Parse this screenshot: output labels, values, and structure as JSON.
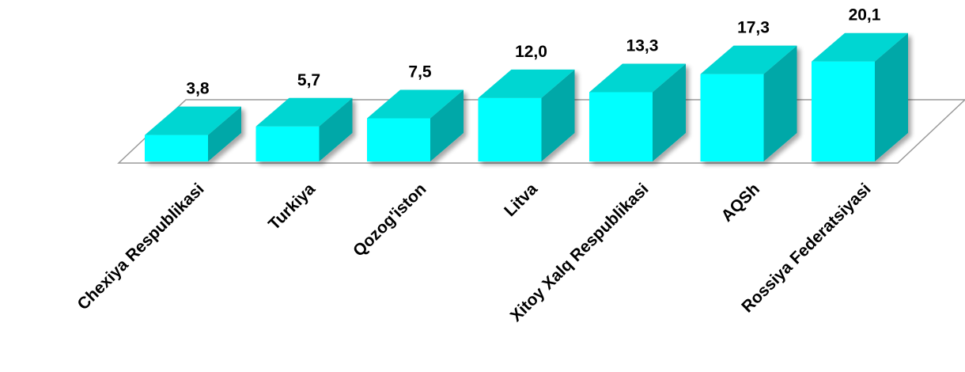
{
  "chart_data": {
    "type": "bar",
    "style": "3d-column",
    "categories": [
      "Chexiya Respublikasi",
      "Turkiya",
      "Qozog'iston",
      "Litva",
      "Xitoy Xalq Respublikasi",
      "AQSh",
      "Rossiya Federatsiyasi"
    ],
    "values": [
      3.8,
      5.7,
      7.5,
      12.0,
      13.3,
      17.3,
      20.1
    ],
    "value_labels": [
      "3,8",
      "5,7",
      "7,5",
      "12,0",
      "13,3",
      "17,3",
      "20,1"
    ],
    "title": "",
    "xlabel": "",
    "ylabel": "",
    "ylim": [
      0,
      20.1
    ],
    "grid": false,
    "legend": "none",
    "colors": {
      "front": "#00ffff",
      "top": "#00d6d2",
      "side": "#00a8a8",
      "floor_stroke": "#9a9a9a"
    }
  }
}
